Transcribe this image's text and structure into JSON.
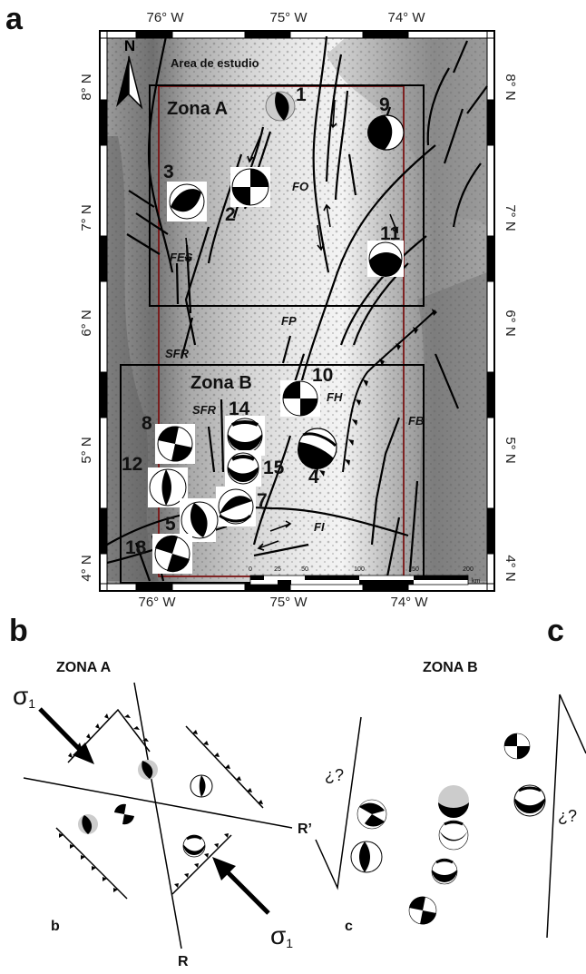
{
  "panel_labels": {
    "a": "a",
    "b": "b",
    "c": "c"
  },
  "map": {
    "top_ticks": [
      "76° W",
      "75° W",
      "74° W"
    ],
    "bottom_ticks": [
      "76° W",
      "75° W",
      "74° W"
    ],
    "left_ticks": [
      "8° N",
      "7° N",
      "6° N",
      "5° N",
      "4° N"
    ],
    "right_ticks": [
      "8° N",
      "7° N",
      "6° N",
      "5° N",
      "4° N"
    ],
    "north": "N",
    "area_label": "Area de estudio",
    "zona_a": "Zona A",
    "zona_b": "Zona B",
    "faults": {
      "fo": "FO",
      "fes": "FES",
      "fp": "FP",
      "sfr1": "SFR",
      "sfr2": "SFR",
      "fh": "FH",
      "fb": "FB",
      "fi": "FI"
    },
    "events": [
      "1",
      "2",
      "3",
      "4",
      "5",
      "7",
      "8",
      "9",
      "10",
      "11",
      "12",
      "14",
      "15",
      "18"
    ],
    "scale_ticks": [
      "0",
      "25",
      "50",
      "100",
      "150",
      "200"
    ],
    "scale_unit": "km"
  },
  "panel_b": {
    "title": "ZONA A",
    "sigma": "σ",
    "sigma_sub": "1",
    "r": "R",
    "r_prime": "R’",
    "corner": "b"
  },
  "panel_c": {
    "title": "ZONA B",
    "question": "¿?",
    "corner": "c"
  }
}
